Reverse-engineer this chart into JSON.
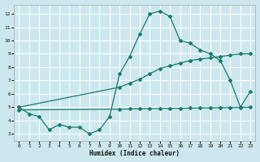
{
  "xlabel": "Humidex (Indice chaleur)",
  "bg_color": "#cce8ee",
  "grid_color": "#ffffff",
  "line_color": "#1a7a6e",
  "xlim": [
    -0.5,
    23.5
  ],
  "ylim": [
    2.5,
    12.7
  ],
  "xticks": [
    0,
    1,
    2,
    3,
    4,
    5,
    6,
    7,
    8,
    9,
    10,
    11,
    12,
    13,
    14,
    15,
    16,
    17,
    18,
    19,
    20,
    21,
    22,
    23
  ],
  "yticks": [
    3,
    4,
    5,
    6,
    7,
    8,
    9,
    10,
    11,
    12
  ],
  "line1_x": [
    0,
    1,
    2,
    3,
    4,
    5,
    6,
    7,
    8,
    9,
    10,
    11,
    12,
    13,
    14,
    15,
    16,
    17,
    18,
    19,
    20,
    21,
    22,
    23
  ],
  "line1_y": [
    5.0,
    4.5,
    4.3,
    3.3,
    3.7,
    3.5,
    3.5,
    3.0,
    3.3,
    4.3,
    7.5,
    8.8,
    10.5,
    12.0,
    12.2,
    11.8,
    10.0,
    9.8,
    9.3,
    9.0,
    8.5,
    7.0,
    5.0,
    6.2
  ],
  "line2_x": [
    0,
    10,
    11,
    12,
    13,
    14,
    15,
    16,
    17,
    18,
    19,
    20,
    21,
    22,
    23
  ],
  "line2_y": [
    5.0,
    6.5,
    6.8,
    7.1,
    7.5,
    7.9,
    8.1,
    8.3,
    8.5,
    8.6,
    8.7,
    8.8,
    8.9,
    9.0,
    9.0
  ],
  "line3_x": [
    0,
    10,
    11,
    12,
    13,
    14,
    15,
    16,
    17,
    18,
    19,
    20,
    21,
    22,
    23
  ],
  "line3_y": [
    4.8,
    4.85,
    4.87,
    4.88,
    4.89,
    4.9,
    4.91,
    4.92,
    4.93,
    4.94,
    4.95,
    4.96,
    4.97,
    4.98,
    5.0
  ]
}
